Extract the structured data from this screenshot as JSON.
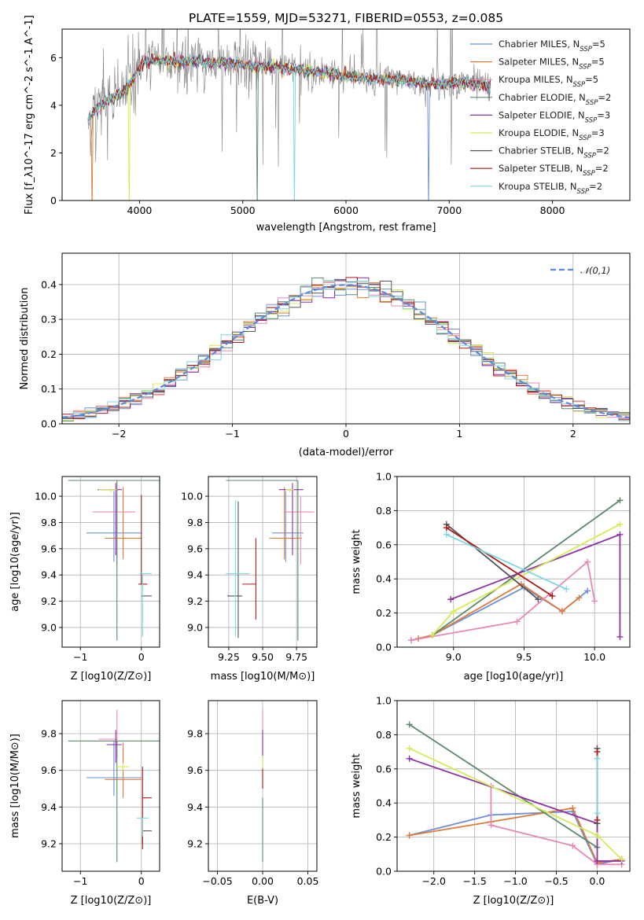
{
  "figure_title": "PLATE=1559, MJD=53271, FIBERID=0553, z=0.085",
  "models": [
    {
      "key": "chabrier_miles",
      "label": "Chabrier MILES, N_SSP=5",
      "color": "#6b8fd8"
    },
    {
      "key": "salpeter_miles",
      "label": "Salpeter MILES, N_SSP=5",
      "color": "#e07b3a"
    },
    {
      "key": "kroupa_miles",
      "label": "Kroupa MILES, N_SSP=5",
      "color": "#e788b8"
    },
    {
      "key": "chabrier_elodie",
      "label": "Chabrier ELODIE, N_SSP=2",
      "color": "#5a8a6a"
    },
    {
      "key": "salpeter_elodie",
      "label": "Salpeter ELODIE, N_SSP=3",
      "color": "#8e2fa8"
    },
    {
      "key": "kroupa_elodie",
      "label": "Kroupa ELODIE, N_SSP=3",
      "color": "#d4ec55"
    },
    {
      "key": "chabrier_stelib",
      "label": "Chabrier STELIB, N_SSP=2",
      "color": "#555555"
    },
    {
      "key": "salpeter_stelib",
      "label": "Salpeter STELIB, N_SSP=2",
      "color": "#b01818"
    },
    {
      "key": "kroupa_stelib",
      "label": "Kroupa STELIB, N_SSP=2",
      "color": "#7dd8e3"
    }
  ],
  "chart_data": [
    {
      "id": "spectrum",
      "type": "line",
      "title": "PLATE=1559, MJD=53271, FIBERID=0553, z=0.085",
      "xlabel": "wavelength [Angstrom, rest frame]",
      "ylabel": "Flux [f_λ10^-17 erg cm^-2 s^-1 A^-1]",
      "xlim": [
        3250,
        8750
      ],
      "ylim": [
        0,
        7.2
      ],
      "xticks": [
        4000,
        5000,
        6000,
        7000,
        8000
      ],
      "yticks": [
        0,
        2,
        4,
        6
      ],
      "data_color": "#808080",
      "data_x_range": [
        3500,
        7400
      ],
      "continuum": {
        "x": [
          3500,
          3550,
          3650,
          3750,
          3850,
          3950,
          4050,
          4150,
          4300,
          4500,
          4700,
          4900,
          5100,
          5300,
          5500,
          5700,
          5900,
          6100,
          6300,
          6500,
          6700,
          6900,
          7100,
          7300,
          7400
        ],
        "y": [
          3.3,
          3.7,
          4.1,
          4.35,
          4.6,
          5.2,
          5.85,
          5.9,
          5.85,
          5.85,
          5.8,
          5.8,
          5.65,
          5.65,
          5.5,
          5.4,
          5.3,
          5.15,
          5.1,
          5.05,
          4.95,
          4.9,
          4.95,
          4.9,
          4.8
        ]
      }
    },
    {
      "id": "residuals",
      "type": "histogram",
      "xlabel": "(data-model)/error",
      "ylabel": "Normed distribution",
      "xlim": [
        -2.5,
        2.5
      ],
      "ylim": [
        0,
        0.49
      ],
      "xticks": [
        -2,
        -1,
        0,
        1,
        2
      ],
      "yticks": [
        0.0,
        0.1,
        0.2,
        0.3,
        0.4
      ],
      "grid": true,
      "reference_curve": {
        "label": "𝒩(0,1)",
        "mu": 0,
        "sigma": 1,
        "color": "#5b8bd9"
      },
      "legend": "top-right"
    },
    {
      "id": "age_vs_Z",
      "type": "errorbar",
      "xlabel": "Z [log10(Z/Z⊙)]",
      "ylabel": "age  [log10(age/yr)]",
      "xlim": [
        -1.3,
        0.3
      ],
      "ylim": [
        8.85,
        10.15
      ],
      "xticks": [
        -1,
        0
      ],
      "yticks": [
        9.0,
        9.2,
        9.4,
        9.6,
        9.8,
        10.0
      ],
      "grid": true,
      "points": [
        {
          "m": 0,
          "x": -0.45,
          "xerr": [
            0.45,
            0.45
          ],
          "y": 9.72,
          "yerr": [
            0.22,
            0.32
          ]
        },
        {
          "m": 1,
          "x": -0.3,
          "xerr": [
            0.3,
            0.3
          ],
          "y": 9.68,
          "yerr": [
            0.16,
            0.39
          ]
        },
        {
          "m": 2,
          "x": -0.4,
          "xerr": [
            0.4,
            0.3
          ],
          "y": 9.88,
          "yerr": [
            0.4,
            0.12
          ]
        },
        {
          "m": 3,
          "x": -0.4,
          "xerr": [
            0.8,
            0.7
          ],
          "y": 10.12,
          "yerr": [
            1.22,
            0.0
          ]
        },
        {
          "m": 4,
          "x": -0.42,
          "xerr": [
            0.3,
            0.1
          ],
          "y": 10.05,
          "yerr": [
            0.5,
            0.05
          ]
        },
        {
          "m": 5,
          "x": -0.5,
          "xerr": [
            0.2,
            0.1
          ],
          "y": 10.05,
          "yerr": [
            0.02,
            0.01
          ]
        },
        {
          "m": 6,
          "x": 0.02,
          "xerr": [
            0.02,
            0.15
          ],
          "y": 9.24,
          "yerr": [
            0.0,
            0.0
          ]
        },
        {
          "m": 7,
          "x": 0.0,
          "xerr": [
            0.05,
            0.1
          ],
          "y": 9.33,
          "yerr": [
            0.0,
            0.68
          ]
        },
        {
          "m": 8,
          "x": 0.02,
          "xerr": [
            0.05,
            0.15
          ],
          "y": 9.41,
          "yerr": [
            0.48,
            0.0
          ]
        }
      ]
    },
    {
      "id": "age_vs_mass",
      "type": "errorbar",
      "xlabel": "mass [log10(M/M⊙)]",
      "ylabel": "",
      "xlim": [
        9.1,
        9.9
      ],
      "ylim": [
        8.85,
        10.15
      ],
      "xticks": [
        9.25,
        9.5,
        9.75
      ],
      "yticks": [
        9.0,
        9.2,
        9.4,
        9.6,
        9.8,
        10.0
      ],
      "grid": true,
      "points": [
        {
          "m": 0,
          "x": 9.67,
          "xerr": [
            0.1,
            0.13
          ],
          "y": 9.72,
          "yerr": [
            0.22,
            0.32
          ]
        },
        {
          "m": 1,
          "x": 9.66,
          "xerr": [
            0.11,
            0.13
          ],
          "y": 9.68,
          "yerr": [
            0.16,
            0.39
          ]
        },
        {
          "m": 2,
          "x": 9.78,
          "xerr": [
            0.12,
            0.1
          ],
          "y": 9.88,
          "yerr": [
            0.4,
            0.12
          ]
        },
        {
          "m": 3,
          "x": 9.76,
          "xerr": [
            0.53,
            0.0
          ],
          "y": 10.12,
          "yerr": [
            1.22,
            0.0
          ]
        },
        {
          "m": 4,
          "x": 9.72,
          "xerr": [
            0.1,
            0.08
          ],
          "y": 10.05,
          "yerr": [
            0.5,
            0.05
          ]
        },
        {
          "m": 5,
          "x": 9.7,
          "xerr": [
            0.03,
            0.03
          ],
          "y": 10.05,
          "yerr": [
            0.02,
            0.01
          ]
        },
        {
          "m": 6,
          "x": 9.32,
          "xerr": [
            0.08,
            0.03
          ],
          "y": 9.24,
          "yerr": [
            0.32,
            0.72
          ]
        },
        {
          "m": 7,
          "x": 9.45,
          "xerr": [
            0.1,
            0.0
          ],
          "y": 9.33,
          "yerr": [
            0.27,
            0.35
          ]
        },
        {
          "m": 8,
          "x": 9.3,
          "xerr": [
            0.07,
            0.1
          ],
          "y": 9.41,
          "yerr": [
            0.48,
            0.56
          ]
        }
      ]
    },
    {
      "id": "massweight_vs_age",
      "type": "line",
      "xlabel": "age  [log10(age/yr)]",
      "ylabel": "mass weight",
      "xlim": [
        8.6,
        10.25
      ],
      "ylim": [
        0.0,
        1.0
      ],
      "xticks": [
        9.0,
        9.5,
        10.0
      ],
      "yticks": [
        0.0,
        0.2,
        0.4,
        0.6,
        0.8,
        1.0
      ],
      "grid": true,
      "series": [
        {
          "m": 0,
          "x": [
            8.7,
            8.85,
            9.5,
            9.77,
            9.95
          ],
          "y": [
            0.04,
            0.07,
            0.35,
            0.21,
            0.33
          ]
        },
        {
          "m": 1,
          "x": [
            8.75,
            8.85,
            9.48,
            9.77,
            9.89
          ],
          "y": [
            0.05,
            0.07,
            0.37,
            0.21,
            0.29
          ]
        },
        {
          "m": 2,
          "x": [
            8.7,
            9.45,
            9.95,
            10.0
          ],
          "y": [
            0.04,
            0.15,
            0.5,
            0.27
          ]
        },
        {
          "m": 3,
          "x": [
            8.85,
            10.18
          ],
          "y": [
            0.07,
            0.86
          ]
        },
        {
          "m": 4,
          "x": [
            8.98,
            10.18,
            10.18
          ],
          "y": [
            0.28,
            0.66,
            0.06
          ]
        },
        {
          "m": 5,
          "x": [
            8.85,
            9.0,
            10.18
          ],
          "y": [
            0.07,
            0.21,
            0.72
          ]
        },
        {
          "m": 6,
          "x": [
            8.95,
            9.6
          ],
          "y": [
            0.72,
            0.28
          ]
        },
        {
          "m": 7,
          "x": [
            8.95,
            9.7
          ],
          "y": [
            0.7,
            0.3
          ]
        },
        {
          "m": 8,
          "x": [
            8.95,
            9.8
          ],
          "y": [
            0.66,
            0.34
          ]
        }
      ]
    },
    {
      "id": "mass_vs_Z",
      "type": "errorbar",
      "xlabel": "Z [log10(Z/Z⊙)]",
      "ylabel": "mass [log10(M/M⊙)]",
      "xlim": [
        -1.3,
        0.3
      ],
      "ylim": [
        9.05,
        9.98
      ],
      "xticks": [
        -1,
        0
      ],
      "yticks": [
        9.2,
        9.4,
        9.6,
        9.8
      ],
      "grid": true,
      "points": [
        {
          "m": 0,
          "x": -0.45,
          "xerr": [
            0.45,
            0.45
          ],
          "y": 9.56,
          "yerr": [
            0.1,
            0.2
          ]
        },
        {
          "m": 1,
          "x": -0.3,
          "xerr": [
            0.3,
            0.3
          ],
          "y": 9.55,
          "yerr": [
            0.1,
            0.2
          ]
        },
        {
          "m": 2,
          "x": -0.4,
          "xerr": [
            0.3,
            0.0
          ],
          "y": 9.77,
          "yerr": [
            0.1,
            0.16
          ]
        },
        {
          "m": 3,
          "x": -0.4,
          "xerr": [
            0.8,
            0.7
          ],
          "y": 9.76,
          "yerr": [
            0.66,
            0.0
          ]
        },
        {
          "m": 4,
          "x": -0.42,
          "xerr": [
            0.15,
            0.1
          ],
          "y": 9.74,
          "yerr": [
            0.1,
            0.08
          ]
        },
        {
          "m": 5,
          "x": -0.3,
          "xerr": [
            0.1,
            0.1
          ],
          "y": 9.62,
          "yerr": [
            0.02,
            0.02
          ]
        },
        {
          "m": 6,
          "x": 0.02,
          "xerr": [
            0.0,
            0.15
          ],
          "y": 9.27,
          "yerr": [
            0.07,
            0.0
          ]
        },
        {
          "m": 7,
          "x": 0.02,
          "xerr": [
            0.0,
            0.15
          ],
          "y": 9.45,
          "yerr": [
            0.28,
            0.17
          ]
        },
        {
          "m": 8,
          "x": 0.02,
          "xerr": [
            0.1,
            0.1
          ],
          "y": 9.34,
          "yerr": [
            0.1,
            0.0
          ]
        }
      ]
    },
    {
      "id": "mass_vs_EBV",
      "type": "errorbar",
      "xlabel": "E(B-V)",
      "ylabel": "",
      "xlim": [
        -0.06,
        0.06
      ],
      "ylim": [
        9.05,
        9.98
      ],
      "xticks": [
        -0.05,
        0.0,
        0.05
      ],
      "yticks": [
        9.2,
        9.4,
        9.6,
        9.8
      ],
      "grid": true,
      "points": [
        {
          "m": 2,
          "x": 0.0,
          "xerr": [
            0,
            0
          ],
          "y": 9.77,
          "yerr": [
            0.1,
            0.16
          ]
        },
        {
          "m": 4,
          "x": 0.0,
          "xerr": [
            0,
            0
          ],
          "y": 9.74,
          "yerr": [
            0.1,
            0.08
          ]
        },
        {
          "m": 5,
          "x": 0.0,
          "xerr": [
            0,
            0
          ],
          "y": 9.62,
          "yerr": [
            0.05,
            0.06
          ]
        },
        {
          "m": 3,
          "x": 0.0,
          "xerr": [
            0,
            0
          ],
          "y": 9.45,
          "yerr": [
            0.35,
            0.0
          ]
        },
        {
          "m": 7,
          "x": 0.0,
          "xerr": [
            0,
            0
          ],
          "y": 9.55,
          "yerr": [
            0.05,
            0.06
          ]
        }
      ]
    },
    {
      "id": "massweight_vs_Z",
      "type": "line",
      "xlabel": "Z [log10(Z/Z⊙)]",
      "ylabel": "mass weight",
      "xlim": [
        -2.45,
        0.4
      ],
      "ylim": [
        0.0,
        1.0
      ],
      "xticks": [
        -2.0,
        -1.5,
        -1.0,
        -0.5,
        0.0
      ],
      "yticks": [
        0.0,
        0.2,
        0.4,
        0.6,
        0.8,
        1.0
      ],
      "grid": true,
      "series": [
        {
          "m": 0,
          "x": [
            -2.3,
            -1.3,
            -0.3,
            0.0,
            0.3
          ],
          "y": [
            0.21,
            0.33,
            0.35,
            0.04,
            0.07
          ]
        },
        {
          "m": 1,
          "x": [
            -2.3,
            -1.3,
            -0.3,
            0.0,
            0.3
          ],
          "y": [
            0.21,
            0.29,
            0.37,
            0.05,
            0.07
          ]
        },
        {
          "m": 2,
          "x": [
            -1.3,
            -1.3,
            -0.3,
            0.0,
            0.3
          ],
          "y": [
            0.5,
            0.27,
            0.15,
            0.04,
            0.04
          ]
        },
        {
          "m": 3,
          "x": [
            -2.3,
            0.0
          ],
          "y": [
            0.86,
            0.14
          ]
        },
        {
          "m": 4,
          "x": [
            -2.3,
            0.0,
            0.0,
            0.3
          ],
          "y": [
            0.66,
            0.28,
            0.06,
            0.06
          ]
        },
        {
          "m": 5,
          "x": [
            -2.3,
            0.0,
            0.3
          ],
          "y": [
            0.72,
            0.21,
            0.07
          ]
        },
        {
          "m": 6,
          "x": [
            0.0,
            0.0
          ],
          "y": [
            0.72,
            0.28
          ]
        },
        {
          "m": 7,
          "x": [
            0.0,
            0.0
          ],
          "y": [
            0.7,
            0.3
          ]
        },
        {
          "m": 8,
          "x": [
            0.0,
            0.0
          ],
          "y": [
            0.66,
            0.34
          ]
        }
      ]
    }
  ]
}
